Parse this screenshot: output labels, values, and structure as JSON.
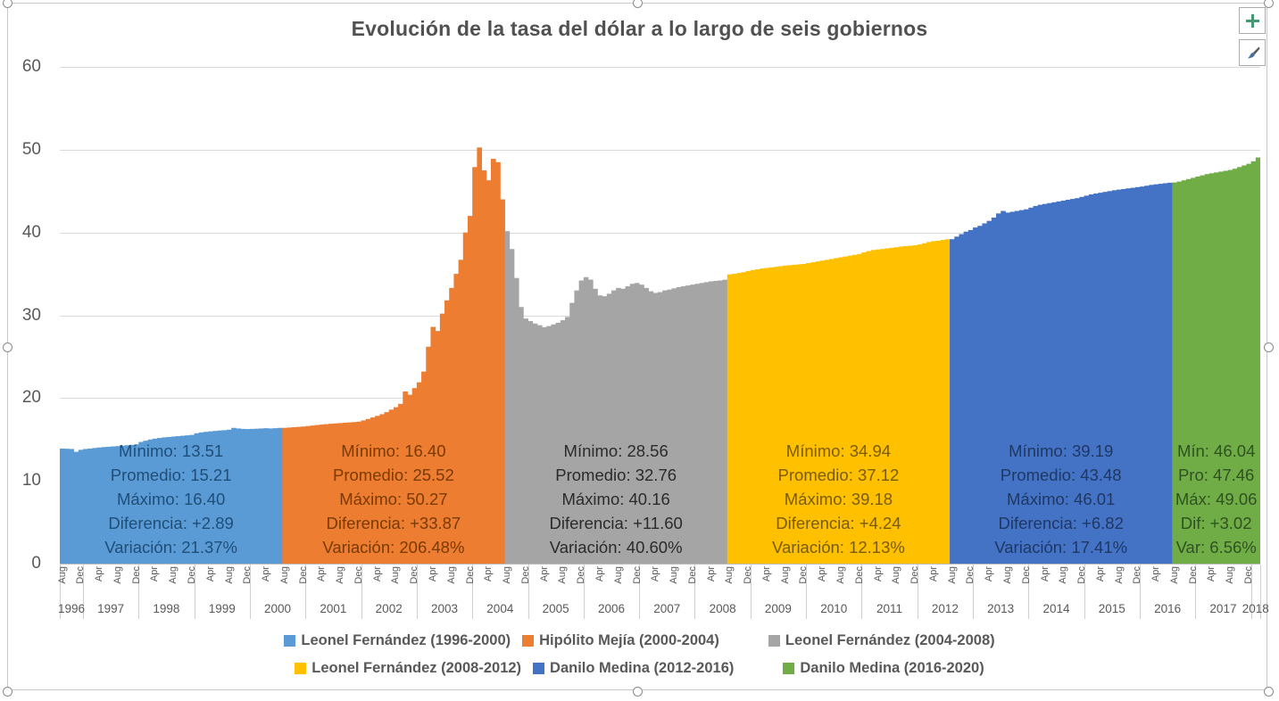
{
  "chart_buttons": {
    "add_element_tooltip": "Chart Elements",
    "add_element_glyph": "+",
    "styles_tooltip": "Chart Styles",
    "styles_glyph": "brush"
  },
  "chart_data": {
    "type": "bar",
    "title": "Evolución de la tasa del dólar a lo largo de seis gobiernos",
    "xlabel": "",
    "ylabel": "",
    "ylim": [
      0,
      60
    ],
    "y_ticks": [
      0,
      10,
      20,
      30,
      40,
      50,
      60
    ],
    "grid": "horizontal",
    "x_unit": "month",
    "x_range": "Aug 1996 - Feb 2018",
    "month_label_every": 4,
    "month_labels": [
      "Aug",
      "Dec",
      "Apr",
      "Aug",
      "Dec",
      "Apr",
      "Aug",
      "Dec",
      "Apr",
      "Aug",
      "Dec",
      "Apr",
      "Aug",
      "Dec",
      "Apr",
      "Aug",
      "Dec",
      "Apr",
      "Aug",
      "Dec",
      "Apr",
      "Aug",
      "Dec",
      "Apr",
      "Aug",
      "Dec",
      "Apr",
      "Aug",
      "Dec",
      "Apr",
      "Aug",
      "Dec",
      "Apr",
      "Aug",
      "Dec",
      "Apr",
      "Aug",
      "Dec",
      "Apr",
      "Aug",
      "Dec",
      "Apr",
      "Aug",
      "Dec",
      "Apr",
      "Aug",
      "Dec",
      "Apr",
      "Aug",
      "Dec",
      "Apr",
      "Aug",
      "Dec",
      "Apr",
      "Aug",
      "Dec",
      "Apr",
      "Aug",
      "Dec",
      "Apr",
      "Aug",
      "Dec",
      "Apr",
      "Aug",
      "Dec"
    ],
    "years": [
      {
        "label": "1996",
        "months": 5
      },
      {
        "label": "1997",
        "months": 12
      },
      {
        "label": "1998",
        "months": 12
      },
      {
        "label": "1999",
        "months": 12
      },
      {
        "label": "2000",
        "months": 12
      },
      {
        "label": "2001",
        "months": 12
      },
      {
        "label": "2002",
        "months": 12
      },
      {
        "label": "2003",
        "months": 12
      },
      {
        "label": "2004",
        "months": 12
      },
      {
        "label": "2005",
        "months": 12
      },
      {
        "label": "2006",
        "months": 12
      },
      {
        "label": "2007",
        "months": 12
      },
      {
        "label": "2008",
        "months": 12
      },
      {
        "label": "2009",
        "months": 12
      },
      {
        "label": "2010",
        "months": 12
      },
      {
        "label": "2011",
        "months": 12
      },
      {
        "label": "2012",
        "months": 12
      },
      {
        "label": "2013",
        "months": 12
      },
      {
        "label": "2014",
        "months": 12
      },
      {
        "label": "2015",
        "months": 12
      },
      {
        "label": "2016",
        "months": 12
      },
      {
        "label": "2017",
        "months": 12
      },
      {
        "label": "2018",
        "months": 2
      }
    ],
    "values": [
      13.9,
      13.88,
      13.85,
      13.51,
      13.75,
      13.85,
      13.9,
      13.97,
      14.03,
      14.08,
      14.12,
      14.16,
      14.2,
      14.25,
      14.3,
      14.35,
      14.4,
      14.7,
      14.85,
      15.0,
      15.1,
      15.18,
      15.25,
      15.3,
      15.35,
      15.4,
      15.45,
      15.5,
      15.55,
      15.75,
      15.85,
      15.92,
      15.98,
      16.03,
      16.08,
      16.12,
      16.18,
      16.4,
      16.33,
      16.28,
      16.26,
      16.28,
      16.3,
      16.33,
      16.36,
      16.33,
      16.36,
      16.4,
      16.4,
      16.44,
      16.48,
      16.52,
      16.56,
      16.62,
      16.68,
      16.74,
      16.8,
      16.85,
      16.9,
      16.94,
      16.98,
      17.02,
      17.06,
      17.1,
      17.15,
      17.3,
      17.48,
      17.66,
      17.85,
      18.05,
      18.3,
      18.6,
      18.9,
      19.3,
      20.8,
      20.4,
      21.2,
      21.9,
      23.2,
      26.2,
      28.6,
      28.1,
      30.2,
      31.8,
      33.3,
      35.0,
      36.7,
      40.0,
      42.0,
      47.9,
      50.27,
      47.5,
      46.3,
      48.9,
      48.5,
      44.0,
      40.16,
      38.0,
      34.5,
      31.0,
      29.6,
      29.3,
      29.0,
      28.8,
      28.56,
      28.7,
      28.9,
      29.1,
      29.4,
      29.8,
      31.5,
      33.0,
      34.2,
      34.6,
      34.3,
      33.2,
      32.4,
      32.3,
      32.6,
      33.0,
      33.3,
      33.2,
      33.5,
      33.8,
      33.9,
      33.7,
      33.3,
      32.9,
      32.7,
      32.8,
      33.0,
      33.1,
      33.25,
      33.4,
      33.5,
      33.6,
      33.7,
      33.8,
      33.9,
      34.0,
      34.1,
      34.15,
      34.2,
      34.3,
      34.94,
      35.0,
      35.1,
      35.2,
      35.35,
      35.45,
      35.55,
      35.65,
      35.72,
      35.78,
      35.85,
      35.92,
      36.0,
      36.05,
      36.1,
      36.15,
      36.2,
      36.3,
      36.4,
      36.5,
      36.6,
      36.7,
      36.8,
      36.9,
      37.0,
      37.1,
      37.2,
      37.3,
      37.4,
      37.6,
      37.75,
      37.88,
      37.95,
      38.0,
      38.08,
      38.15,
      38.22,
      38.3,
      38.35,
      38.4,
      38.45,
      38.55,
      38.7,
      38.85,
      38.95,
      39.0,
      39.1,
      39.18,
      39.19,
      39.5,
      39.8,
      40.1,
      40.3,
      40.6,
      40.8,
      41.1,
      41.4,
      41.8,
      42.3,
      42.6,
      42.4,
      42.5,
      42.6,
      42.7,
      42.8,
      43.0,
      43.2,
      43.35,
      43.45,
      43.55,
      43.65,
      43.75,
      43.85,
      43.95,
      44.05,
      44.15,
      44.3,
      44.45,
      44.6,
      44.7,
      44.8,
      44.9,
      45.0,
      45.1,
      45.18,
      45.25,
      45.33,
      45.4,
      45.48,
      45.55,
      45.65,
      45.75,
      45.82,
      45.88,
      45.95,
      46.01,
      46.04,
      46.15,
      46.3,
      46.45,
      46.6,
      46.75,
      46.9,
      47.05,
      47.15,
      47.25,
      47.35,
      47.45,
      47.55,
      47.7,
      47.9,
      48.1,
      48.3,
      48.6,
      49.06
    ],
    "segments": [
      {
        "president": "Leonel Fernández (1996-2000)",
        "color": "#5B9BD5",
        "stats_color": "#1F4E79",
        "start": 0,
        "count": 48,
        "stats": [
          "Mínimo: 13.51",
          "Promedio: 15.21",
          "Máximo: 16.40",
          "Diferencia: +2.89",
          "Variación: 21.37%"
        ]
      },
      {
        "president": "Hipólito Mejía (2000-2004)",
        "color": "#ED7D31",
        "stats_color": "#7A3A00",
        "start": 48,
        "count": 48,
        "stats": [
          "Mínimo: 16.40",
          "Promedio: 25.52",
          "Máximo: 50.27",
          "Diferencia: +33.87",
          "Variación: 206.48%"
        ]
      },
      {
        "president": "Leonel Fernández (2004-2008)",
        "color": "#A5A5A5",
        "stats_color": "#2B2B2B",
        "start": 96,
        "count": 48,
        "stats": [
          "Mínimo: 28.56",
          "Promedio: 32.76",
          "Máximo: 40.16",
          "Diferencia: +11.60",
          "Variación: 40.60%"
        ]
      },
      {
        "president": "Leonel Fernández (2008-2012)",
        "color": "#FFC000",
        "stats_color": "#7A5C00",
        "start": 144,
        "count": 48,
        "stats": [
          "Mínimo: 34.94",
          "Promedio: 37.12",
          "Máximo: 39.18",
          "Diferencia: +4.24",
          "Variación: 12.13%"
        ]
      },
      {
        "president": "Danilo Medina (2012-2016)",
        "color": "#4472C4",
        "stats_color": "#1F3864",
        "start": 192,
        "count": 48,
        "stats": [
          "Mínimo: 39.19",
          "Promedio: 43.48",
          "Máximo: 46.01",
          "Diferencia: +6.82",
          "Variación: 17.41%"
        ]
      },
      {
        "president": "Danilo Medina (2016-2020)",
        "color": "#70AD47",
        "stats_color": "#2F5220",
        "start": 240,
        "count": 19,
        "stats": [
          "Mín: 46.04",
          "Pro: 47.46",
          "Máx: 49.06",
          "Dif: +3.02",
          "Var: 6.56%"
        ]
      }
    ],
    "legend_rows": [
      [
        0,
        1,
        2
      ],
      [
        3,
        4,
        5
      ]
    ]
  }
}
